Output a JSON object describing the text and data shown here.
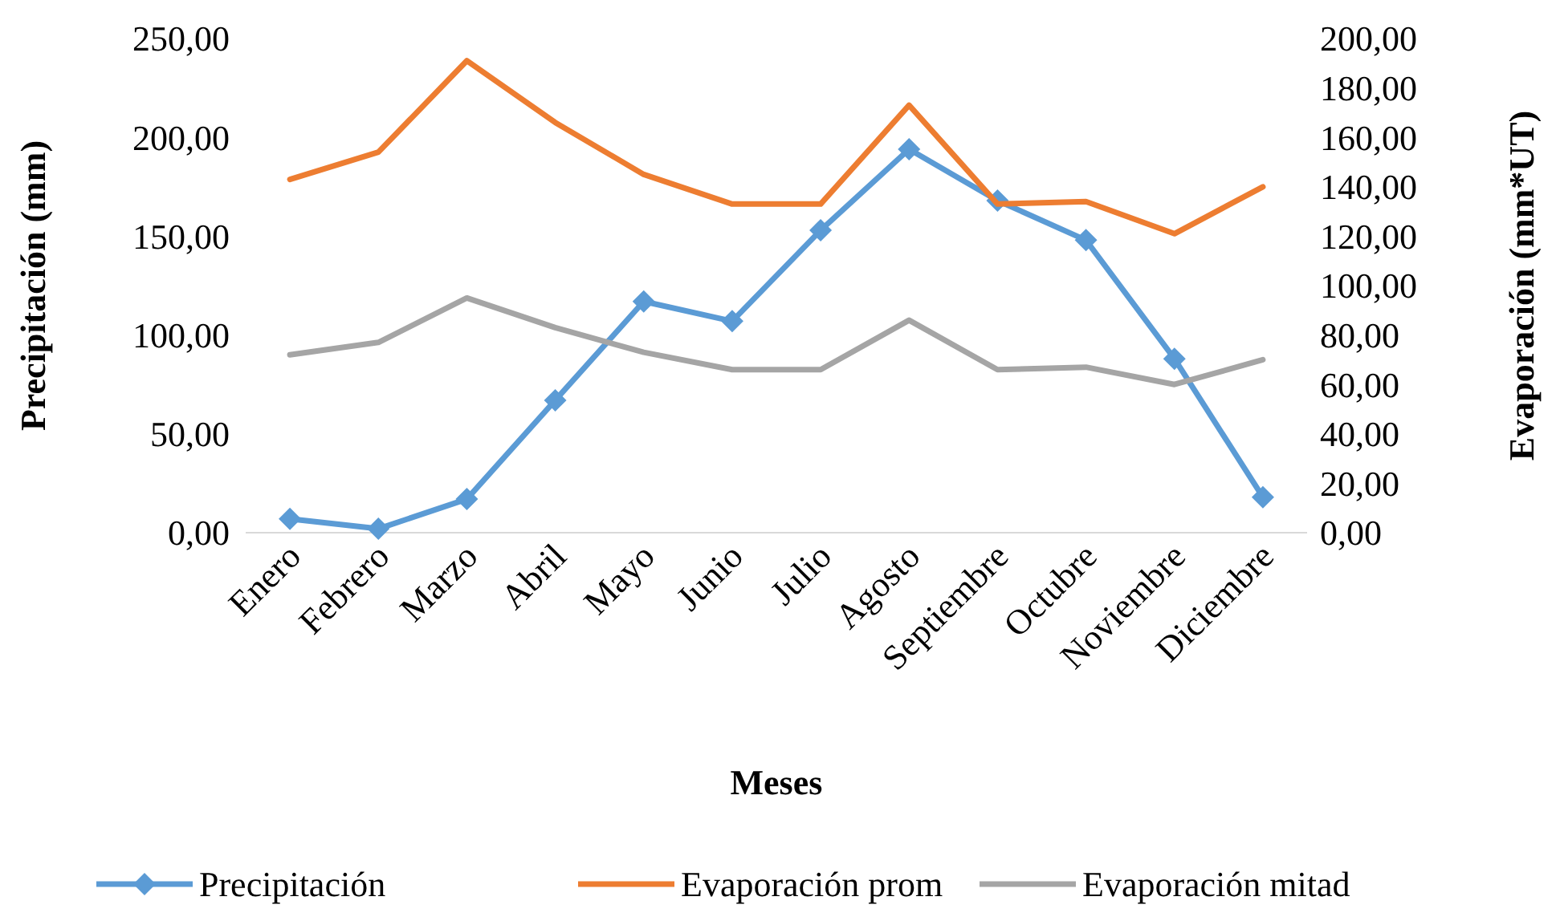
{
  "chart_data": {
    "type": "line",
    "xlabel": "Meses",
    "ylabel": "Precipitación (mm)",
    "y2label": "Evaporación (mm*UT)",
    "categories": [
      "Enero",
      "Febrero",
      "Marzo",
      "Abril",
      "Mayo",
      "Junio",
      "Julio",
      "Agosto",
      "Septiembre",
      "Octubre",
      "Noviembre",
      "Diciembre"
    ],
    "series": [
      {
        "name": "Precipitación",
        "color": "#5b9bd5",
        "marker": "diamond",
        "values": [
          7,
          2,
          17,
          67,
          117,
          107,
          153,
          194,
          168,
          148,
          88,
          18
        ]
      },
      {
        "name": "Evaporación prom",
        "color": "#ed7d31",
        "marker": "none",
        "axis": "y2",
        "values": [
          143,
          154,
          191,
          166,
          145,
          133,
          133,
          173,
          133,
          134,
          121,
          140
        ]
      },
      {
        "name": "Evaporación mitad",
        "color": "#a5a5a5",
        "marker": "none",
        "axis": "y2",
        "values": [
          72,
          77,
          95,
          83,
          73,
          66,
          66,
          86,
          66,
          67,
          60,
          70
        ]
      }
    ],
    "ylim": [
      0,
      250
    ],
    "yticks": [
      {
        "value": 0,
        "label": "0,00"
      },
      {
        "value": 50,
        "label": "50,00"
      },
      {
        "value": 100,
        "label": "100,00"
      },
      {
        "value": 150,
        "label": "150,00"
      },
      {
        "value": 200,
        "label": "200,00"
      },
      {
        "value": 250,
        "label": "250,00"
      }
    ],
    "y2lim": [
      0,
      200
    ],
    "y2ticks": [
      {
        "value": 0,
        "label": "0,00"
      },
      {
        "value": 20,
        "label": "20,00"
      },
      {
        "value": 40,
        "label": "40,00"
      },
      {
        "value": 60,
        "label": "60,00"
      },
      {
        "value": 80,
        "label": "80,00"
      },
      {
        "value": 100,
        "label": "100,00"
      },
      {
        "value": 120,
        "label": "120,00"
      },
      {
        "value": 140,
        "label": "140,00"
      },
      {
        "value": 160,
        "label": "160,00"
      },
      {
        "value": 180,
        "label": "180,00"
      },
      {
        "value": 200,
        "label": "200,00"
      }
    ],
    "legend": "bottom"
  }
}
